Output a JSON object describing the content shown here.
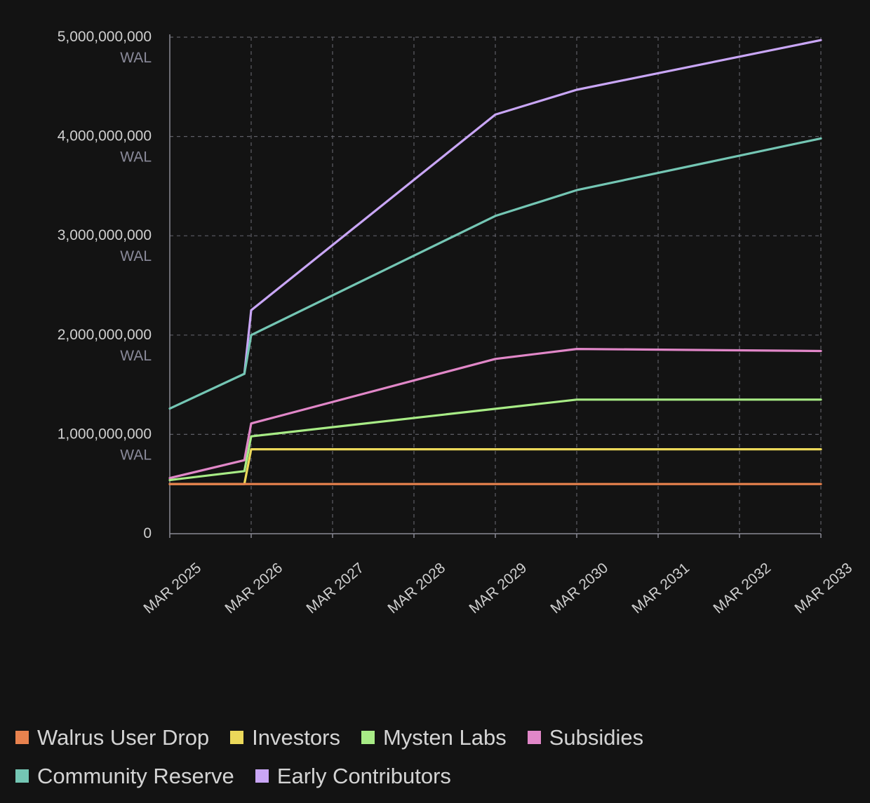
{
  "chart_data": {
    "type": "line",
    "title": "",
    "xlabel": "",
    "ylabel": "",
    "y_unit": "WAL",
    "ylim": [
      0,
      5000000000
    ],
    "y_ticks": [
      {
        "value": 0,
        "label": "0",
        "unit": ""
      },
      {
        "value": 1000000000,
        "label": "1,000,000,000",
        "unit": "WAL"
      },
      {
        "value": 2000000000,
        "label": "2,000,000,000",
        "unit": "WAL"
      },
      {
        "value": 3000000000,
        "label": "3,000,000,000",
        "unit": "WAL"
      },
      {
        "value": 4000000000,
        "label": "4,000,000,000",
        "unit": "WAL"
      },
      {
        "value": 5000000000,
        "label": "5,000,000,000",
        "unit": "WAL"
      }
    ],
    "x_ticks": [
      {
        "value": "2025-03",
        "label": "MAR 2025"
      },
      {
        "value": "2026-03",
        "label": "MAR 2026"
      },
      {
        "value": "2027-03",
        "label": "MAR 2027"
      },
      {
        "value": "2028-03",
        "label": "MAR 2028"
      },
      {
        "value": "2029-03",
        "label": "MAR 2029"
      },
      {
        "value": "2030-03",
        "label": "MAR 2030"
      },
      {
        "value": "2031-03",
        "label": "MAR 2031"
      },
      {
        "value": "2032-03",
        "label": "MAR 2032"
      },
      {
        "value": "2033-03",
        "label": "MAR 2033"
      }
    ],
    "xlim": [
      "2025-03",
      "2033-03"
    ],
    "grid": true,
    "stacked": true,
    "legend_position": "bottom",
    "series": [
      {
        "name": "Walrus User Drop",
        "color": "#e8824e",
        "points": [
          [
            "2025-03",
            500000000
          ],
          [
            "2033-03",
            500000000
          ]
        ]
      },
      {
        "name": "Investors",
        "color": "#ecd95a",
        "points": [
          [
            "2025-03",
            500000000
          ],
          [
            "2026-02",
            500000000
          ],
          [
            "2026-03",
            850000000
          ],
          [
            "2033-03",
            850000000
          ]
        ]
      },
      {
        "name": "Mysten Labs",
        "color": "#a8ec86",
        "points": [
          [
            "2025-03",
            540000000
          ],
          [
            "2026-02",
            630000000
          ],
          [
            "2026-03",
            980000000
          ],
          [
            "2030-03",
            1350000000
          ],
          [
            "2033-03",
            1350000000
          ]
        ]
      },
      {
        "name": "Subsidies",
        "color": "#e187c8",
        "points": [
          [
            "2025-03",
            560000000
          ],
          [
            "2026-02",
            740000000
          ],
          [
            "2026-03",
            1110000000
          ],
          [
            "2029-03",
            1760000000
          ],
          [
            "2030-03",
            1860000000
          ],
          [
            "2033-03",
            1840000000
          ]
        ]
      },
      {
        "name": "Community Reserve",
        "color": "#74c6b4",
        "points": [
          [
            "2025-03",
            1260000000
          ],
          [
            "2026-02",
            1610000000
          ],
          [
            "2026-03",
            2000000000
          ],
          [
            "2029-03",
            3200000000
          ],
          [
            "2030-03",
            3460000000
          ],
          [
            "2033-03",
            3980000000
          ]
        ]
      },
      {
        "name": "Early Contributors",
        "color": "#c9a6f6",
        "points": [
          [
            "2026-02",
            1610000000
          ],
          [
            "2026-03",
            2250000000
          ],
          [
            "2029-03",
            4220000000
          ],
          [
            "2030-03",
            4470000000
          ],
          [
            "2033-03",
            4970000000
          ]
        ]
      }
    ]
  },
  "legend": [
    {
      "label": "Walrus User Drop",
      "color": "#e8824e"
    },
    {
      "label": "Investors",
      "color": "#ecd95a"
    },
    {
      "label": "Mysten Labs",
      "color": "#a8ec86"
    },
    {
      "label": "Subsidies",
      "color": "#e187c8"
    },
    {
      "label": "Community Reserve",
      "color": "#74c6b4"
    },
    {
      "label": "Early Contributors",
      "color": "#c9a6f6"
    }
  ]
}
